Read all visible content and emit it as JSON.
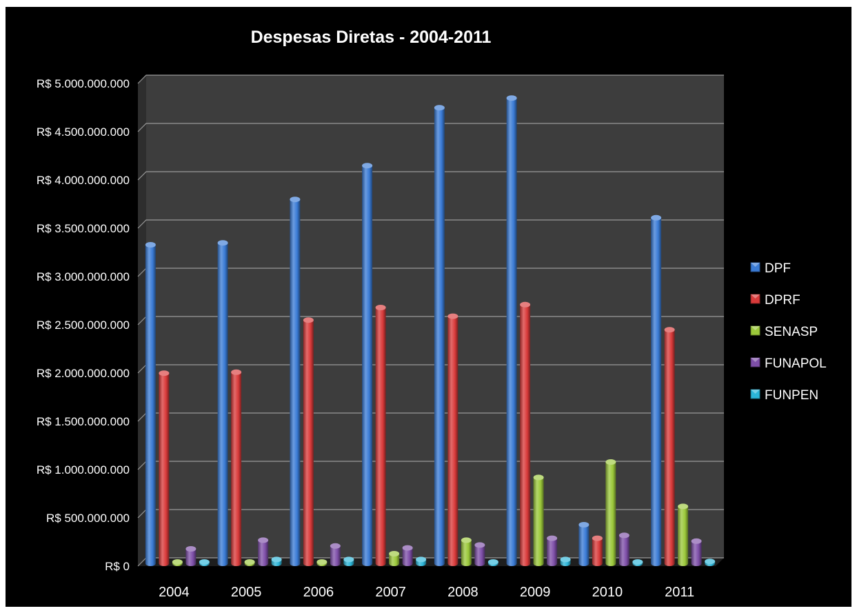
{
  "chart_data": {
    "type": "bar",
    "title": "Despesas Diretas - 2004-2011",
    "xlabel": "",
    "ylabel": "",
    "categories": [
      "2004",
      "2005",
      "2006",
      "2007",
      "2008",
      "2009",
      "2010",
      "2011"
    ],
    "ylim": [
      0,
      5000000000
    ],
    "yticks": [
      0,
      500000000,
      1000000000,
      1500000000,
      2000000000,
      2500000000,
      3000000000,
      3500000000,
      4000000000,
      4500000000,
      5000000000
    ],
    "ytick_labels": [
      "R$ 0",
      "R$ 500.000.000",
      "R$ 1.000.000.000",
      "R$ 1.500.000.000",
      "R$ 2.000.000.000",
      "R$ 2.500.000.000",
      "R$ 3.000.000.000",
      "R$ 3.500.000.000",
      "R$ 4.000.000.000",
      "R$ 4.500.000.000",
      "R$ 5.000.000.000"
    ],
    "grid": true,
    "legend_position": "right",
    "series": [
      {
        "name": "DPF",
        "color": "#3a7bd5",
        "values": [
          3300000000,
          3320000000,
          3770000000,
          4120000000,
          4720000000,
          4820000000,
          400000000,
          3580000000
        ]
      },
      {
        "name": "DPRF",
        "color": "#d93a3a",
        "values": [
          1970000000,
          1980000000,
          2520000000,
          2650000000,
          2560000000,
          2680000000,
          260000000,
          2420000000
        ]
      },
      {
        "name": "SENASP",
        "color": "#9bc83a",
        "values": [
          5000000,
          10000000,
          10000000,
          100000000,
          240000000,
          890000000,
          1050000000,
          590000000
        ]
      },
      {
        "name": "FUNAPOL",
        "color": "#7e4fa8",
        "values": [
          150000000,
          240000000,
          180000000,
          160000000,
          190000000,
          260000000,
          290000000,
          230000000
        ]
      },
      {
        "name": "FUNPEN",
        "color": "#2bb5d8",
        "values": [
          5000000,
          40000000,
          40000000,
          40000000,
          10000000,
          40000000,
          10000000,
          20000000
        ]
      }
    ]
  }
}
